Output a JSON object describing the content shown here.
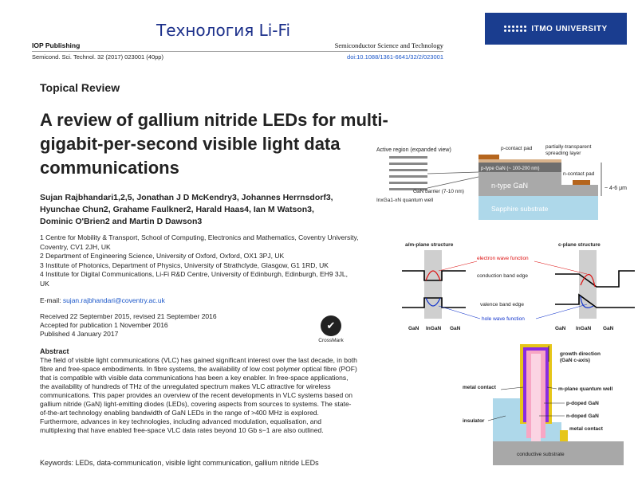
{
  "slide": {
    "title": "Технология Li-Fi",
    "logo_text": "ITMO UNIVERSITY"
  },
  "paper": {
    "publisher": "IOP Publishing",
    "journal": "Semiconductor Science and Technology",
    "citation": "Semicond. Sci. Technol. 32 (2017) 023001 (40pp)",
    "doi": "doi:10.1088/1361-6641/32/2/023001",
    "section": "Topical Review",
    "title_lines": [
      "A review of gallium nitride LEDs for multi-",
      "gigabit-per-second visible light data",
      "communications"
    ],
    "authors_lines": [
      "Sujan Rajbhandari1,2,5, Jonathan J D McKendry3, Johannes Herrnsdorf3,",
      "Hyunchae Chun2, Grahame Faulkner2, Harald Haas4, Ian M Watson3,",
      "Dominic O'Brien2 and Martin D Dawson3"
    ],
    "affiliations": [
      "1 Centre for Mobility & Transport, School of Computing, Electronics and Mathematics, Coventry University, Coventry, CV1 2JH, UK",
      "2 Department of Engineering Science, University of Oxford, Oxford, OX1 3PJ, UK",
      "3 Institute of Photonics, Department of Physics, University of Strathclyde, Glasgow, G1 1RD, UK",
      "4 Institute for Digital Communications, Li-Fi R&D Centre, University of Edinburgh, Edinburgh, EH9 3JL, UK"
    ],
    "email_label": "E-mail:",
    "email": "sujan.rajbhandari@coventry.ac.uk",
    "dates": [
      "Received 22 September 2015, revised 21 September 2016",
      "Accepted for publication 1 November 2016",
      "Published 4 January 2017"
    ],
    "crossmark": "CrossMark",
    "abstract_heading": "Abstract",
    "abstract": "The field of visible light communications (VLC) has gained significant interest over the last decade, in both fibre and free-space embodiments. In fibre systems, the availability of low cost polymer optical fibre (POF) that is compatible with visible data communications has been a key enabler. In free-space applications, the availability of hundreds of THz of the unregulated spectrum makes VLC attractive for wireless communications. This paper provides an overview of the recent developments in VLC systems based on gallium nitride (GaN) light-emitting diodes (LEDs), covering aspects from sources to systems. The state-of-the-art technology enabling bandwidth of GaN LEDs in the range of >400 MHz is explored. Furthermore, advances in key technologies, including advanced modulation, equalisation, and multiplexing that have enabled free-space VLC data rates beyond 10 Gb s−1 are also outlined.",
    "keywords": "Keywords: LEDs, data-communication, visible light communication, gallium nitride LEDs"
  },
  "fig_led": {
    "active_region": "Active region (expanded view)",
    "p_contact": "p-contact pad",
    "spreading": "partially-transparent",
    "spreading2": "spreading layer",
    "p_type": "p-type GaN (~ 100-200 nm)",
    "n_contact": "n-contact pad",
    "n_type": "n-type GaN",
    "thickness": "~ 4-6 μm",
    "sapphire": "Sapphire substrate",
    "barrier": "GaN barrier (7-10 nm)",
    "qw": "InxGa1-xN quantum well"
  },
  "fig_band": {
    "aplane": "a/m-plane structure",
    "cplane": "c-plane structure",
    "electron": "electron wave function",
    "conduction": "conduction band edge",
    "valence": "valence band edge",
    "hole": "hole wave function",
    "x_labels_left": [
      "GaN",
      "InGaN",
      "GaN"
    ],
    "x_labels_right": [
      "GaN",
      "InGaN",
      "GaN"
    ]
  },
  "fig_nanorod": {
    "growth": "growth direction",
    "growth2": "(GaN c-axis)",
    "metal": "metal contact",
    "qw": "m-plane quantum well",
    "p_doped": "p-doped GaN",
    "n_doped": "n-doped GaN",
    "insulator": "insulator",
    "metal2": "metal contact",
    "substrate": "conductive substrate"
  }
}
